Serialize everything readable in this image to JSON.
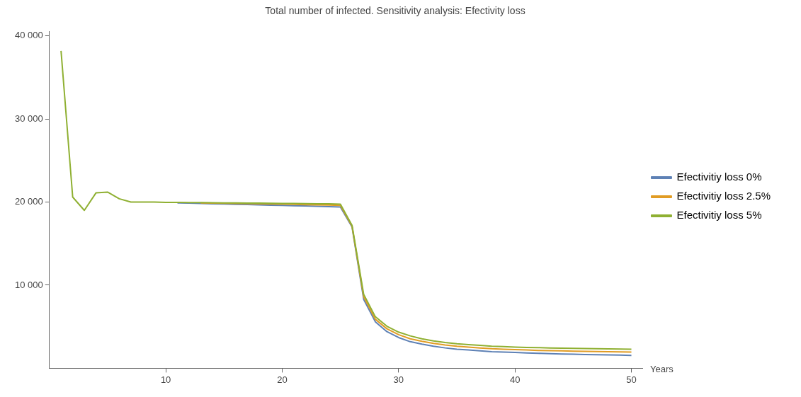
{
  "chart_data": {
    "type": "line",
    "title": "Total number of infected. Sensitivity analysis: Efectivity loss",
    "xlabel": "Years",
    "x": [
      1,
      2,
      3,
      4,
      5,
      6,
      7,
      8,
      9,
      10,
      11,
      12,
      13,
      14,
      15,
      16,
      17,
      18,
      19,
      20,
      21,
      22,
      23,
      24,
      25,
      26,
      27,
      28,
      29,
      30,
      31,
      32,
      33,
      34,
      35,
      36,
      37,
      38,
      39,
      40,
      41,
      42,
      43,
      44,
      45,
      46,
      47,
      48,
      49,
      50
    ],
    "series": [
      {
        "name": "Efectivitiy loss 0%",
        "color": "#5e81b5",
        "values": [
          null,
          null,
          null,
          null,
          null,
          null,
          null,
          null,
          null,
          null,
          19900,
          19870,
          19830,
          19800,
          19760,
          19730,
          19700,
          19660,
          19630,
          19600,
          19560,
          19530,
          19500,
          19460,
          19400,
          17000,
          8300,
          5600,
          4400,
          3700,
          3200,
          2900,
          2650,
          2450,
          2300,
          2200,
          2100,
          2000,
          1950,
          1900,
          1850,
          1800,
          1760,
          1720,
          1690,
          1660,
          1630,
          1600,
          1580,
          1550
        ]
      },
      {
        "name": "Efectivitiy loss 2.5%",
        "color": "#e19c24",
        "values": [
          null,
          null,
          null,
          null,
          null,
          null,
          null,
          null,
          null,
          null,
          null,
          null,
          19900,
          19880,
          19860,
          19830,
          19810,
          19790,
          19760,
          19740,
          19720,
          19690,
          19670,
          19640,
          19600,
          17100,
          8600,
          5900,
          4750,
          4050,
          3550,
          3250,
          3000,
          2800,
          2650,
          2550,
          2450,
          2350,
          2300,
          2250,
          2200,
          2150,
          2120,
          2090,
          2060,
          2030,
          2010,
          1990,
          1970,
          1950
        ]
      },
      {
        "name": "Efectivitiy loss 5%",
        "color": "#8fb032",
        "values": [
          38200,
          20600,
          19000,
          21100,
          21200,
          20400,
          20000,
          20000,
          20000,
          19950,
          19960,
          19940,
          19930,
          19920,
          19900,
          19890,
          19880,
          19870,
          19850,
          19840,
          19830,
          19810,
          19800,
          19780,
          19750,
          17200,
          8900,
          6200,
          5050,
          4350,
          3900,
          3550,
          3300,
          3100,
          2950,
          2850,
          2750,
          2650,
          2600,
          2550,
          2500,
          2480,
          2450,
          2420,
          2400,
          2380,
          2360,
          2340,
          2320,
          2300
        ]
      }
    ],
    "xlim": [
      0,
      51
    ],
    "xticks": [
      10,
      20,
      30,
      40,
      50
    ],
    "ylim": [
      0,
      40500
    ],
    "yticks": [
      {
        "value": 10000,
        "label": "10 000"
      },
      {
        "value": 20000,
        "label": "20 000"
      },
      {
        "value": 30000,
        "label": "30 000"
      },
      {
        "value": 40000,
        "label": "40 000"
      }
    ],
    "grid": false,
    "legend": "right",
    "marker": "none",
    "line_style": "solid"
  }
}
